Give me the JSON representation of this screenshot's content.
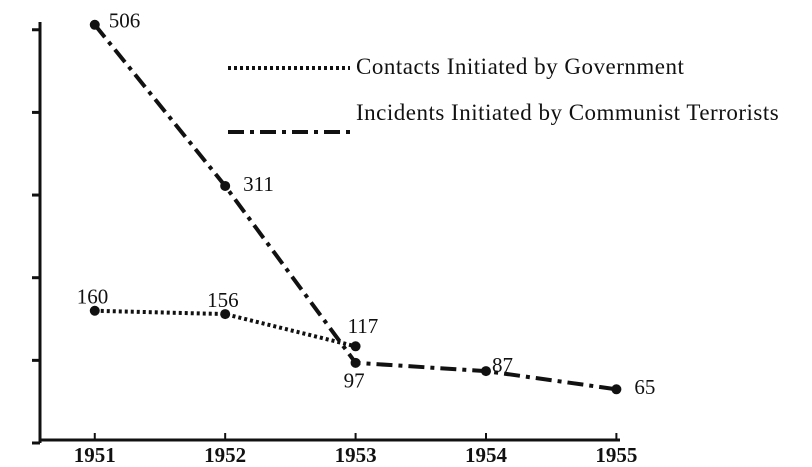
{
  "chart_data": {
    "type": "line",
    "x": [
      1951,
      1952,
      1953,
      1954,
      1955
    ],
    "series": [
      {
        "name": "Contacts Initiated by Government",
        "color": "#111111",
        "style": "dotted",
        "values": [
          160,
          156,
          117,
          null,
          null
        ]
      },
      {
        "name": "Incidents Initiated by Communist Terrorists",
        "color": "#111111",
        "style": "dashdot",
        "values": [
          506,
          311,
          97,
          87,
          65
        ]
      }
    ],
    "xlim": [
      1950.58,
      1956.5
    ],
    "xticks": [
      1951,
      1952,
      1953,
      1954,
      1955
    ],
    "ylim": [
      0,
      536
    ],
    "yticks": [
      0,
      100,
      200,
      300,
      400,
      500
    ],
    "grid": false,
    "legend": "upper right"
  }
}
